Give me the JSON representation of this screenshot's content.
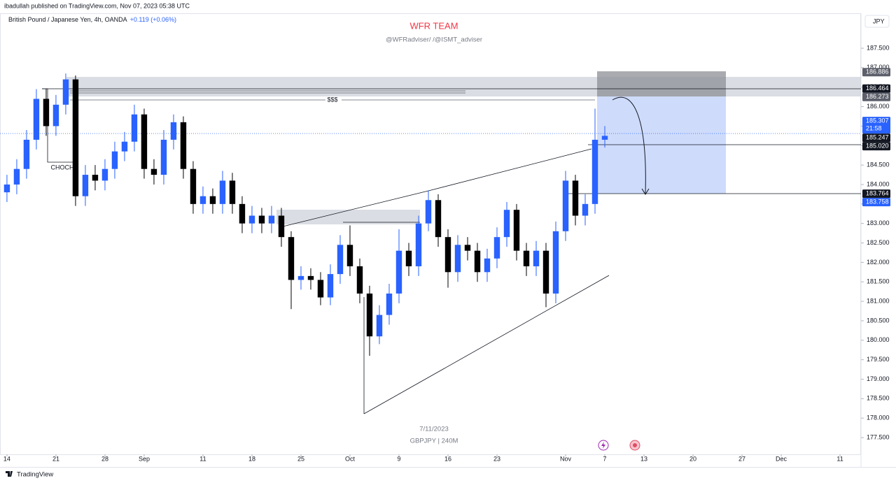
{
  "header": {
    "published": "ibadullah published on TradingView.com, Nov 07, 2023 05:38 UTC",
    "brand": "TradingView"
  },
  "chart_data": {
    "type": "candlestick",
    "title": "WFR TEAM",
    "subtitle": "@WFRadviser/ /@ISMT_adviser",
    "symbol": "British Pound / Japanese Yen, 4h, OANDA",
    "change": "+0.119 (+0.06%)",
    "currency": "JPY",
    "watermark_date": "7/11/2023",
    "watermark_symbol": "GBPJPY | 240M",
    "annotations": {
      "choch": "CHOCH",
      "liquidity": "$$$"
    },
    "up_color": "#2962ff",
    "down_color": "#000000",
    "grid": false,
    "x": [
      0,
      1,
      2,
      3,
      4,
      5,
      6,
      7,
      8,
      9,
      10,
      11,
      12,
      13,
      14,
      15,
      16,
      17,
      18,
      19,
      20,
      21,
      22,
      23,
      24,
      25,
      26,
      27,
      28,
      29,
      30,
      31,
      32,
      33,
      34,
      35,
      36,
      37,
      38,
      39,
      40,
      41,
      42,
      43,
      44,
      45,
      46,
      47,
      48,
      49,
      50,
      51,
      52,
      53,
      54,
      55,
      56,
      57,
      58,
      59,
      60,
      61
    ],
    "open": [
      183.8,
      184.0,
      184.4,
      185.15,
      186.2,
      185.5,
      186.05,
      186.7,
      183.7,
      184.25,
      184.1,
      184.4,
      184.85,
      185.1,
      185.8,
      184.4,
      184.25,
      185.15,
      185.6,
      184.4,
      183.5,
      183.7,
      183.5,
      184.1,
      183.5,
      183.0,
      183.2,
      183.0,
      183.2,
      182.65,
      181.55,
      181.65,
      181.55,
      181.1,
      181.7,
      182.45,
      181.9,
      181.2,
      180.1,
      180.65,
      181.2,
      182.3,
      181.9,
      183.0,
      183.6,
      182.65,
      181.75,
      182.45,
      182.3,
      181.75,
      182.1,
      182.65,
      183.35,
      182.3,
      181.9,
      182.3,
      181.2,
      182.8,
      184.1,
      183.2,
      183.5,
      185.15
    ],
    "high": [
      184.25,
      184.65,
      185.4,
      186.45,
      186.45,
      186.3,
      186.85,
      186.8,
      184.5,
      184.5,
      184.65,
      185.1,
      185.35,
      186.05,
      185.95,
      184.65,
      185.4,
      185.8,
      185.75,
      184.6,
      183.95,
      183.9,
      184.35,
      184.3,
      183.7,
      183.45,
      183.4,
      183.45,
      183.4,
      182.8,
      181.9,
      181.85,
      181.75,
      181.95,
      182.7,
      182.95,
      182.1,
      181.4,
      180.9,
      181.45,
      182.85,
      182.5,
      183.2,
      183.85,
      183.75,
      182.85,
      182.7,
      182.65,
      182.5,
      182.35,
      182.9,
      183.55,
      183.5,
      182.5,
      182.55,
      182.5,
      183.05,
      184.35,
      184.25,
      183.75,
      185.95,
      185.5
    ],
    "low": [
      183.55,
      183.75,
      184.15,
      184.9,
      185.25,
      185.25,
      185.8,
      183.45,
      183.45,
      183.85,
      183.85,
      184.15,
      184.6,
      184.85,
      184.15,
      184.0,
      184.0,
      184.9,
      184.15,
      183.25,
      183.25,
      183.25,
      183.25,
      183.25,
      182.75,
      182.75,
      182.75,
      182.75,
      182.4,
      180.8,
      181.3,
      181.3,
      180.9,
      180.9,
      181.45,
      181.65,
      180.95,
      179.6,
      179.9,
      180.4,
      180.95,
      181.65,
      181.65,
      182.8,
      182.4,
      181.35,
      181.5,
      182.05,
      181.5,
      181.5,
      181.85,
      182.4,
      182.05,
      181.65,
      181.65,
      180.85,
      180.95,
      182.55,
      182.95,
      182.95,
      183.25,
      184.95
    ],
    "close": [
      184.0,
      184.4,
      185.15,
      186.2,
      185.5,
      186.05,
      186.7,
      183.7,
      184.25,
      184.1,
      184.4,
      184.85,
      185.1,
      185.8,
      184.4,
      184.25,
      185.15,
      185.6,
      184.4,
      183.5,
      183.7,
      183.5,
      184.1,
      183.5,
      183.0,
      183.2,
      183.0,
      183.2,
      182.65,
      181.55,
      181.65,
      181.55,
      181.1,
      181.7,
      182.45,
      181.9,
      181.2,
      180.1,
      180.65,
      181.2,
      182.3,
      181.9,
      183.0,
      183.6,
      182.65,
      181.75,
      182.45,
      182.3,
      181.75,
      182.1,
      182.65,
      183.35,
      182.3,
      181.9,
      182.3,
      181.2,
      182.8,
      184.1,
      183.2,
      183.5,
      185.15,
      185.25
    ],
    "xlim": [
      -0.71,
      87.14
    ],
    "xticks": [
      {
        "value": 0,
        "label": "14"
      },
      {
        "value": 5,
        "label": "21"
      },
      {
        "value": 10,
        "label": "28"
      },
      {
        "value": 14,
        "label": "Sep"
      },
      {
        "value": 20,
        "label": "11"
      },
      {
        "value": 25,
        "label": "18"
      },
      {
        "value": 30,
        "label": "25"
      },
      {
        "value": 35,
        "label": "Oct"
      },
      {
        "value": 40,
        "label": "9"
      },
      {
        "value": 45,
        "label": "16"
      },
      {
        "value": 50,
        "label": "23"
      },
      {
        "value": 57,
        "label": "Nov"
      },
      {
        "value": 61,
        "label": "7"
      },
      {
        "value": 65,
        "label": "13"
      },
      {
        "value": 70,
        "label": "20"
      },
      {
        "value": 75,
        "label": "27"
      },
      {
        "value": 79,
        "label": "Dec"
      },
      {
        "value": 85,
        "label": "11"
      }
    ],
    "ylim": [
      177.07,
      188.38
    ],
    "yticks": [
      {
        "value": 187.5,
        "label": "187.500"
      },
      {
        "value": 187,
        "label": "187.000"
      },
      {
        "value": 186.5,
        "label": "186.500"
      },
      {
        "value": 186,
        "label": "186.000"
      },
      {
        "value": 185.5,
        "label": "185.500"
      },
      {
        "value": 185,
        "label": "185.000"
      },
      {
        "value": 184.5,
        "label": "184.500"
      },
      {
        "value": 184,
        "label": "184.000"
      },
      {
        "value": 183.5,
        "label": "183.500"
      },
      {
        "value": 183,
        "label": "183.000"
      },
      {
        "value": 182.5,
        "label": "182.500"
      },
      {
        "value": 182,
        "label": "182.000"
      },
      {
        "value": 181.5,
        "label": "181.500"
      },
      {
        "value": 181,
        "label": "181.000"
      },
      {
        "value": 180.5,
        "label": "180.500"
      },
      {
        "value": 180,
        "label": "180.000"
      },
      {
        "value": 179.5,
        "label": "179.500"
      },
      {
        "value": 179,
        "label": "179.000"
      },
      {
        "value": 178.5,
        "label": "178.500"
      },
      {
        "value": 178,
        "label": "178.000"
      },
      {
        "value": 177.5,
        "label": "177.500"
      }
    ],
    "price_tags": [
      {
        "value": 186.886,
        "label": "186.886",
        "color": "#5d606b"
      },
      {
        "value": 186.464,
        "label": "186.464",
        "color": "#131722"
      },
      {
        "value": 186.273,
        "label": "186.273",
        "color": "#5d606b"
      },
      {
        "value": 185.307,
        "label": "185.307",
        "color": "#2962ff",
        "countdown": "21:58"
      },
      {
        "value": 185.247,
        "label": "185.247",
        "color": "#131722"
      },
      {
        "value": 185.02,
        "label": "185.020",
        "color": "#131722"
      },
      {
        "value": 183.764,
        "label": "183.764",
        "color": "#131722"
      },
      {
        "value": 183.758,
        "label": "183.758",
        "color": "#2962ff"
      }
    ]
  }
}
